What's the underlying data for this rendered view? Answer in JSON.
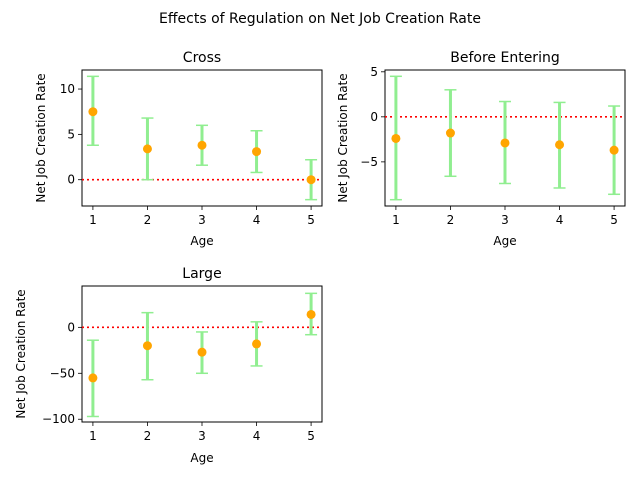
{
  "figure": {
    "title": "Effects of Regulation on Net Job Creation Rate"
  },
  "style": {
    "errorbar_color": "#90ee90",
    "marker_color": "#ffa500",
    "zero_line_color": "#ff0000"
  },
  "chart_data": [
    {
      "type": "errorbar",
      "title": "Cross",
      "xlabel": "Age",
      "ylabel": "Net Job Creation Rate",
      "x": [
        1,
        2,
        3,
        4,
        5
      ],
      "y": [
        7.5,
        3.4,
        3.8,
        3.1,
        0.0
      ],
      "lower": [
        3.8,
        0.0,
        1.6,
        0.8,
        -2.2
      ],
      "upper": [
        11.4,
        6.8,
        6.0,
        5.4,
        2.2
      ],
      "xlim": [
        0.8,
        5.2
      ],
      "ylim": [
        -2.9,
        12.1
      ],
      "xticks": [
        1,
        2,
        3,
        4,
        5
      ],
      "yticks": [
        0,
        5,
        10
      ],
      "reference_line": 0,
      "grid": false
    },
    {
      "type": "errorbar",
      "title": "Before Entering",
      "xlabel": "Age",
      "ylabel": "Net Job Creation Rate",
      "x": [
        1,
        2,
        3,
        4,
        5
      ],
      "y": [
        -2.4,
        -1.8,
        -2.9,
        -3.1,
        -3.7
      ],
      "lower": [
        -9.2,
        -6.6,
        -7.4,
        -7.9,
        -8.6
      ],
      "upper": [
        4.5,
        3.0,
        1.7,
        1.6,
        1.2
      ],
      "xlim": [
        0.8,
        5.2
      ],
      "ylim": [
        -9.9,
        5.2
      ],
      "xticks": [
        1,
        2,
        3,
        4,
        5
      ],
      "yticks": [
        -5,
        0,
        5
      ],
      "reference_line": 0,
      "grid": false
    },
    {
      "type": "errorbar",
      "title": "Large",
      "xlabel": "Age",
      "ylabel": "Net Job Creation Rate",
      "x": [
        1,
        2,
        3,
        4,
        5
      ],
      "y": [
        -55,
        -20,
        -27,
        -18,
        14
      ],
      "lower": [
        -97,
        -57,
        -50,
        -42,
        -8
      ],
      "upper": [
        -14,
        16,
        -5,
        6,
        37
      ],
      "xlim": [
        0.8,
        5.2
      ],
      "ylim": [
        -103,
        45
      ],
      "xticks": [
        1,
        2,
        3,
        4,
        5
      ],
      "yticks": [
        -100,
        -50,
        0
      ],
      "reference_line": 0,
      "grid": false
    }
  ]
}
